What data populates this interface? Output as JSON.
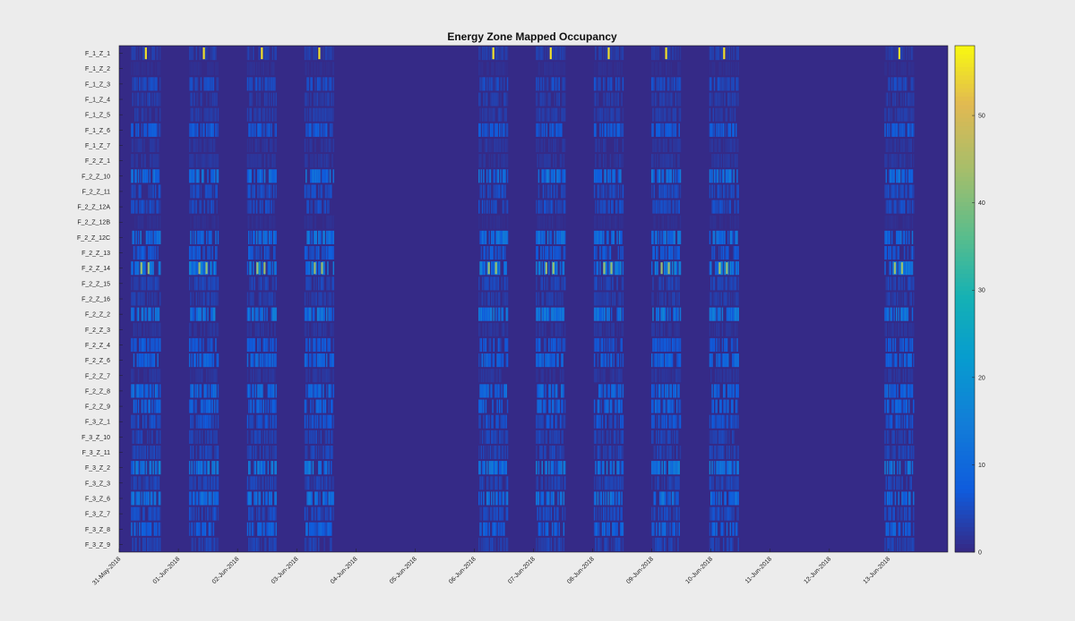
{
  "chart_data": {
    "type": "heatmap",
    "title": "Energy Zone Mapped Occupancy",
    "colormap": "parula",
    "colors": {
      "low": "#352a87",
      "mid": "#0f87d8",
      "high": "#f9fb0e",
      "panel_bg": "#ececec"
    },
    "row_labels": [
      "F_1_Z_1",
      "F_1_Z_2",
      "F_1_Z_3",
      "F_1_Z_4",
      "F_1_Z_5",
      "F_1_Z_6",
      "F_1_Z_7",
      "F_2_Z_1",
      "F_2_Z_10",
      "F_2_Z_11",
      "F_2_Z_12A",
      "F_2_Z_12B",
      "F_2_Z_12C",
      "F_2_Z_13",
      "F_2_Z_14",
      "F_2_Z_15",
      "F_2_Z_16",
      "F_2_Z_2",
      "F_2_Z_3",
      "F_2_Z_4",
      "F_2_Z_6",
      "F_2_Z_7",
      "F_2_Z_8",
      "F_2_Z_9",
      "F_3_Z_1",
      "F_3_Z_10",
      "F_3_Z_11",
      "F_3_Z_2",
      "F_3_Z_3",
      "F_3_Z_6",
      "F_3_Z_7",
      "F_3_Z_8",
      "F_3_Z_9"
    ],
    "x_tick_labels": [
      "31-May-2018",
      "01-Jun-2018",
      "02-Jun-2018",
      "03-Jun-2018",
      "04-Jun-2018",
      "05-Jun-2018",
      "06-Jun-2018",
      "07-Jun-2018",
      "08-Jun-2018",
      "09-Jun-2018",
      "10-Jun-2018",
      "11-Jun-2018",
      "12-Jun-2018",
      "13-Jun-2018"
    ],
    "active_day_centers": [
      0.45,
      1.43,
      2.41,
      3.38,
      6.32,
      7.29,
      8.27,
      9.24,
      10.22,
      13.18
    ],
    "row_levels": [
      3,
      1,
      5,
      3,
      3,
      7,
      2,
      2,
      12,
      5,
      5,
      1,
      12,
      7,
      14,
      4,
      3,
      13,
      2,
      7,
      9,
      2,
      10,
      9,
      6,
      4,
      4,
      13,
      4,
      12,
      5,
      9,
      4
    ],
    "peaks": [
      {
        "row": "F_1_Z_1",
        "value": 55
      },
      {
        "row": "F_2_Z_14",
        "value": 42
      }
    ],
    "colorbar": {
      "ticks": [
        0,
        10,
        20,
        30,
        40,
        50
      ],
      "range": [
        0,
        58
      ]
    }
  }
}
